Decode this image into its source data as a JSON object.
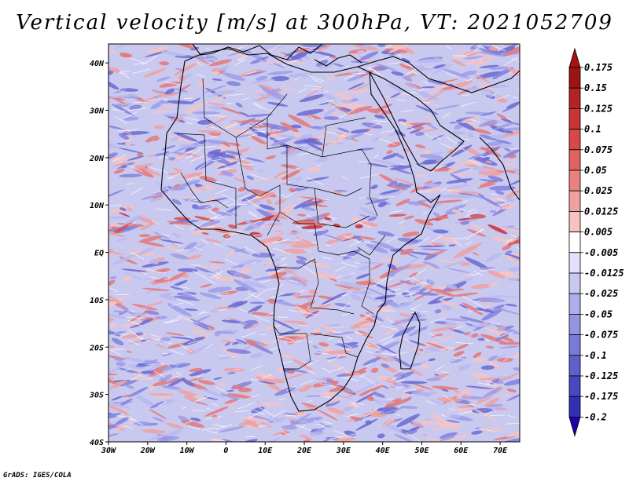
{
  "title": "Vertical velocity [m/s] at 300hPa, VT: 2021052709",
  "footer": "GrADS: IGES/COLA",
  "axes": {
    "lon_labels": [
      "30W",
      "20W",
      "10W",
      "0",
      "10E",
      "20E",
      "30E",
      "40E",
      "50E",
      "60E",
      "70E"
    ],
    "lon_values": [
      -30,
      -20,
      -10,
      0,
      10,
      20,
      30,
      40,
      50,
      60,
      70
    ],
    "lat_labels": [
      "40N",
      "30N",
      "20N",
      "10N",
      "EQ",
      "10S",
      "20S",
      "30S",
      "40S"
    ],
    "lat_values": [
      40,
      30,
      20,
      10,
      0,
      -10,
      -20,
      -30,
      -40
    ],
    "lon_range": [
      -30,
      75
    ],
    "lat_range": [
      -40,
      44
    ]
  },
  "colorbar": {
    "labels": [
      "0.175",
      "0.15",
      "0.125",
      "0.1",
      "0.075",
      "0.05",
      "0.025",
      "0.0125",
      "0.005",
      "-0.005",
      "-0.0125",
      "-0.025",
      "-0.05",
      "-0.075",
      "-0.1",
      "-0.125",
      "-0.175",
      "-0.2"
    ],
    "colors": [
      "#9c1414",
      "#b52222",
      "#c93434",
      "#d84848",
      "#e26262",
      "#ea8080",
      "#f0a0a0",
      "#f6c2c2",
      "#ffffff",
      "#e2e2fa",
      "#c8c8f2",
      "#aeaeec",
      "#9494e4",
      "#7a7ad8",
      "#6060cc",
      "#4848c0",
      "#3030b0",
      "#1a1a98"
    ],
    "top_color": "#aa1111",
    "bottom_color": "#2200aa"
  },
  "legend_colors": {
    "positive": "#e06a6a",
    "negative": "#7f7fe6",
    "land": "#d9d9f2",
    "ocean_base": "#c9c9f0"
  },
  "icons": {
    "colorbar_up": "triangle-up-icon",
    "colorbar_down": "triangle-down-icon"
  }
}
